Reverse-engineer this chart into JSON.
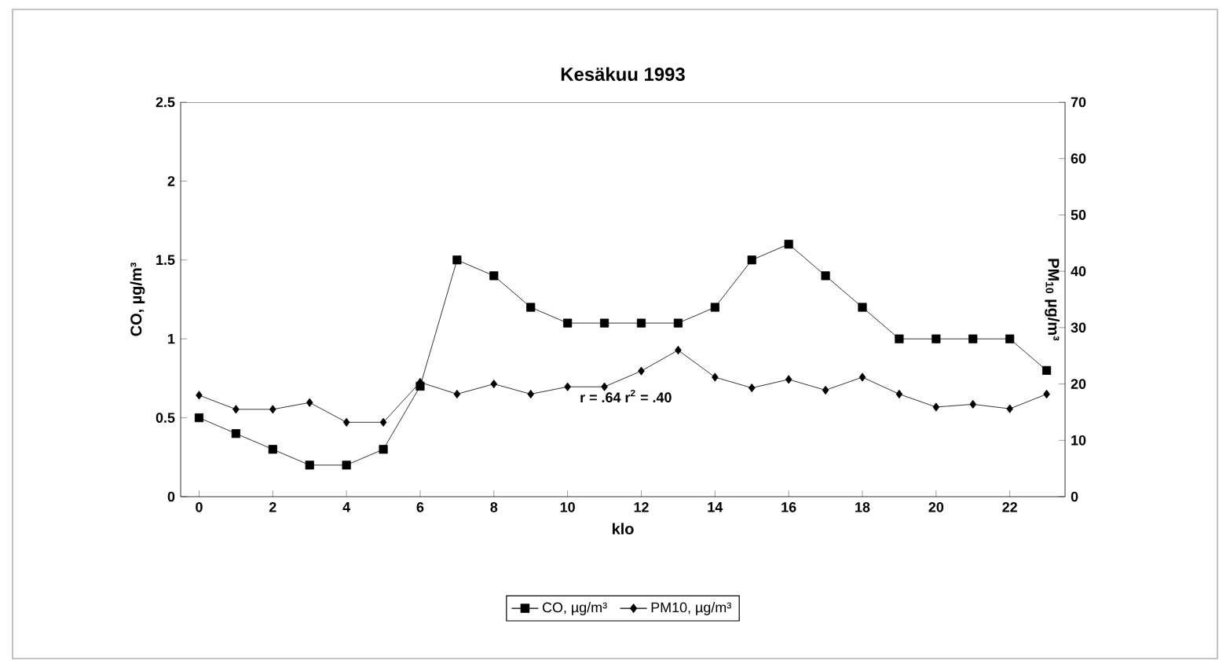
{
  "chart_data": {
    "type": "line",
    "title": "Kesäkuu 1993",
    "xlabel": "klo",
    "ylabel": "CO, µg/m³",
    "y2label": "PM$_{10}$ µg/m³",
    "x": [
      0,
      1,
      2,
      3,
      4,
      5,
      6,
      7,
      8,
      9,
      10,
      11,
      12,
      13,
      14,
      15,
      16,
      17,
      18,
      19,
      20,
      21,
      22,
      23
    ],
    "series": [
      {
        "name": "CO, µg/m³",
        "color": "#000000",
        "marker": "square",
        "values": [
          0.5,
          0.4,
          0.3,
          0.2,
          0.2,
          0.3,
          0.7,
          1.5,
          1.4,
          1.2,
          1.1,
          1.1,
          1.1,
          1.1,
          1.2,
          1.5,
          1.6,
          1.4,
          1.2,
          1.0,
          1.0,
          1.0,
          1.0,
          0.8
        ]
      },
      {
        "name": "PM10, µg/m³",
        "color": "#000000",
        "marker": "diamond",
        "axis": "y2",
        "values": [
          18,
          15.5,
          15.5,
          16.7,
          13.2,
          13.2,
          20.3,
          18.2,
          20,
          18.2,
          19.5,
          19.5,
          22.3,
          26,
          21.2,
          19.3,
          20.8,
          18.9,
          21.2,
          18.2,
          15.9,
          16.4,
          15.6,
          18.2
        ]
      }
    ],
    "xlim": [
      -0.5,
      23.5
    ],
    "xticks": [
      0,
      2,
      4,
      6,
      8,
      10,
      12,
      14,
      16,
      18,
      20,
      22
    ],
    "ylim": [
      0,
      2.5
    ],
    "yticks": [
      0,
      0.5,
      1,
      1.5,
      2,
      2.5
    ],
    "y2lim": [
      0,
      70
    ],
    "y2ticks": [
      0,
      10,
      20,
      30,
      40,
      50,
      60,
      70
    ],
    "annotations": [
      "r = .64  r$^{2}$ = .40"
    ],
    "legend": "bottom",
    "grid": false,
    "line_style": "solid"
  }
}
